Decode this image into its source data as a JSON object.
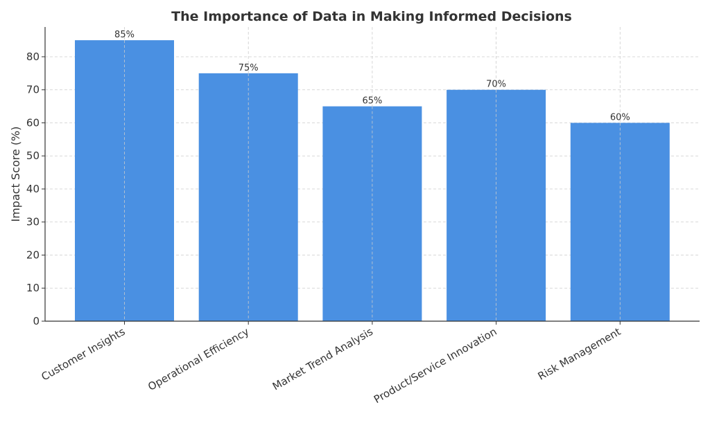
{
  "chart_data": {
    "type": "bar",
    "title": "The Importance of Data in Making Informed Decisions",
    "xlabel": "",
    "ylabel": "Impact Score (%)",
    "ylim": [
      0,
      89
    ],
    "yticks": [
      0,
      10,
      20,
      30,
      40,
      50,
      60,
      70,
      80
    ],
    "categories": [
      "Customer Insights",
      "Operational Efficiency",
      "Market Trend Analysis",
      "Product/Service Innovation",
      "Risk Management"
    ],
    "values": [
      85,
      75,
      65,
      70,
      60
    ],
    "data_labels": [
      "85%",
      "75%",
      "65%",
      "70%",
      "60%"
    ],
    "grid": true,
    "bar_color": "#4a90e2"
  }
}
